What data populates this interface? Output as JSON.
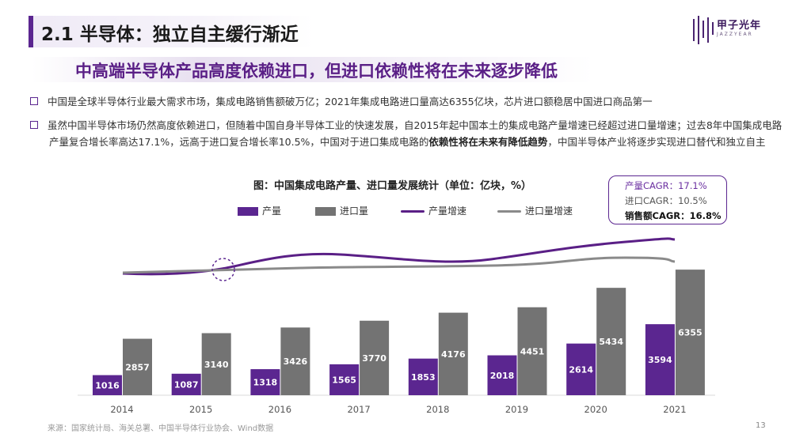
{
  "header": {
    "title": "2.1 半导体：独立自主缓行渐近",
    "logo_text": "甲子光年",
    "logo_sub": "JAZZYEAR"
  },
  "subtitle": "中高端半导体产品高度依赖进口，但进口依赖性将在未来逐步降低",
  "bullets": {
    "b1": "中国是全球半导体行业最大需求市场，集成电路销售额破万亿；2021年集成电路进口量高达6355亿块，芯片进口额稳居中国进口商品第一",
    "b2_part1": "虽然中国半导体市场仍然高度依赖进口，但随着中国自身半导体工业的快速发展，自2015年起中国本土的集成电路产量增速已经超过进口量增速；过去8年中国集成电路产量复合增长率高达17.1%，远高于进口复合增长率10.5%，中国对于进口集成电路的",
    "b2_bold": "依赖性将在未来有降低趋势",
    "b2_part2": "，中国半导体产业将逐步实现进口替代和独立自主"
  },
  "cagr": {
    "line1": "产量CAGR：17.1%",
    "line2": "进口CAGR：10.5%",
    "line3": "销售额CAGR：16.8%"
  },
  "legend": {
    "production": "产量",
    "import": "进口量",
    "production_growth": "产量增速",
    "import_growth": "进口量增速"
  },
  "colors": {
    "purple": "#5b2690",
    "gray": "#737373",
    "growth_purple": "#5a1f86",
    "growth_gray": "#8a8a8a"
  },
  "chart_data": {
    "type": "bar",
    "title": "图：中国集成电路产量、进口量发展统计（单位：亿块，%）",
    "categories": [
      "2014",
      "2015",
      "2016",
      "2017",
      "2018",
      "2019",
      "2020",
      "2021"
    ],
    "series": [
      {
        "name": "产量",
        "values": [
          1016,
          1087,
          1318,
          1565,
          1853,
          2018,
          2614,
          3594
        ]
      },
      {
        "name": "进口量",
        "values": [
          2857,
          3140,
          3426,
          3770,
          4176,
          4451,
          5434,
          6355
        ]
      }
    ],
    "growth_lines": [
      {
        "name": "产量增速",
        "trend": "rising above import growth after 2015"
      },
      {
        "name": "进口量增速",
        "trend": "relatively flat"
      }
    ],
    "ylim": [
      0,
      7000
    ],
    "legend_position": "top"
  },
  "footer": {
    "source": "来源：国家统计局、海关总署、中国半导体行业协会、Wind数据",
    "page": "13"
  }
}
